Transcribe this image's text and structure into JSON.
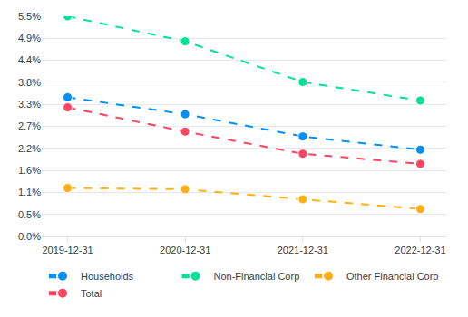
{
  "chart_data": {
    "type": "line",
    "categories": [
      "2019-12-31",
      "2020-12-31",
      "2021-12-31",
      "2022-12-31"
    ],
    "series": [
      {
        "name": "Households",
        "color": "#008FFB",
        "values": [
          3.45,
          3.03,
          2.48,
          2.15
        ]
      },
      {
        "name": "Non-Financial Corp",
        "color": "#00E396",
        "values": [
          5.46,
          4.84,
          3.83,
          3.37
        ]
      },
      {
        "name": "Other Financial Corp",
        "color": "#FEB019",
        "values": [
          1.2,
          1.17,
          0.92,
          0.68
        ]
      },
      {
        "name": "Total",
        "color": "#FF4560",
        "values": [
          3.2,
          2.6,
          2.05,
          1.8
        ]
      }
    ],
    "ylim": [
      0,
      5.46
    ],
    "yticks": [
      {
        "value": 0,
        "label": "0.0%"
      },
      {
        "value": 0.546,
        "label": "0.5%"
      },
      {
        "value": 1.092,
        "label": "1.1%"
      },
      {
        "value": 1.638,
        "label": "1.6%"
      },
      {
        "value": 2.184,
        "label": "2.2%"
      },
      {
        "value": 2.73,
        "label": "2.7%"
      },
      {
        "value": 3.276,
        "label": "3.3%"
      },
      {
        "value": 3.822,
        "label": "3.8%"
      },
      {
        "value": 4.368,
        "label": "4.4%"
      },
      {
        "value": 4.914,
        "label": "4.9%"
      },
      {
        "value": 5.46,
        "label": "5.5%"
      }
    ],
    "grid": true,
    "legend": "bottom",
    "marker": "circle",
    "line_style": "dashed"
  }
}
